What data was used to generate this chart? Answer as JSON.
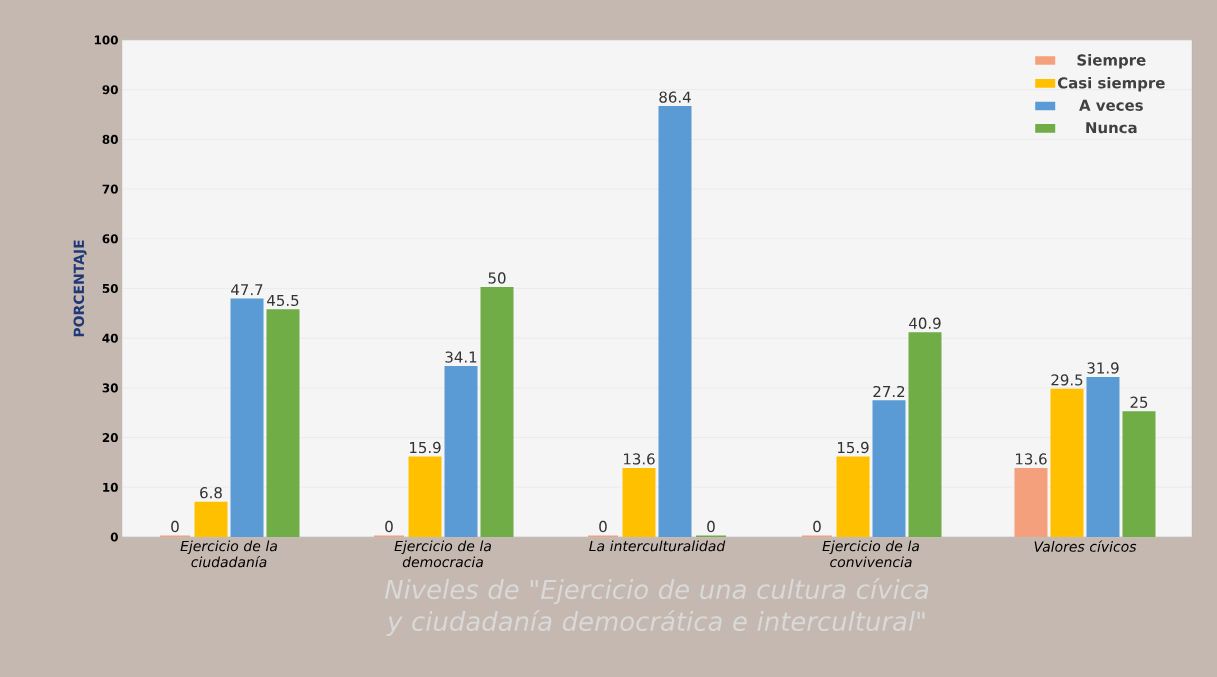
{
  "chart_data": {
    "type": "bar",
    "categories": [
      "Ejercicio de la ciudadanía",
      "Ejercicio de la democracia",
      "La interculturalidad",
      "Ejercicio de la convivencia",
      "Valores cívicos"
    ],
    "series": [
      {
        "name": "Siempre",
        "color": "#f4a07c",
        "values": [
          0,
          0,
          0,
          0,
          13.6
        ],
        "value_labels": [
          "0",
          "0",
          "0",
          "0",
          "13.6"
        ]
      },
      {
        "name": "Casi siempre",
        "color": "#ffc000",
        "values": [
          6.8,
          15.9,
          13.6,
          15.9,
          29.5
        ],
        "value_labels": [
          "6.8",
          "15.9",
          "13.6",
          "15.9",
          "29.5"
        ]
      },
      {
        "name": "A veces",
        "color": "#5b9bd5",
        "values": [
          47.7,
          34.1,
          86.4,
          27.2,
          31.9
        ],
        "value_labels": [
          "47.7",
          "34.1",
          "86.4",
          "27.2",
          "31.9"
        ]
      },
      {
        "name": "Nunca",
        "color": "#70ad47",
        "values": [
          45.5,
          50,
          0,
          40.9,
          25
        ],
        "value_labels": [
          "45.5",
          "50",
          "0",
          "40.9",
          "25"
        ]
      }
    ],
    "xlabel": "Niveles de \"Ejercicio de una cultura cívica y ciudadanía democrática e intercultural\"",
    "ylabel": "PORCENTAJE",
    "ylim": [
      0,
      100
    ],
    "yticks": [
      0,
      10,
      20,
      30,
      40,
      50,
      60,
      70,
      80,
      90,
      100
    ],
    "grid": "y",
    "legend": "top right"
  }
}
